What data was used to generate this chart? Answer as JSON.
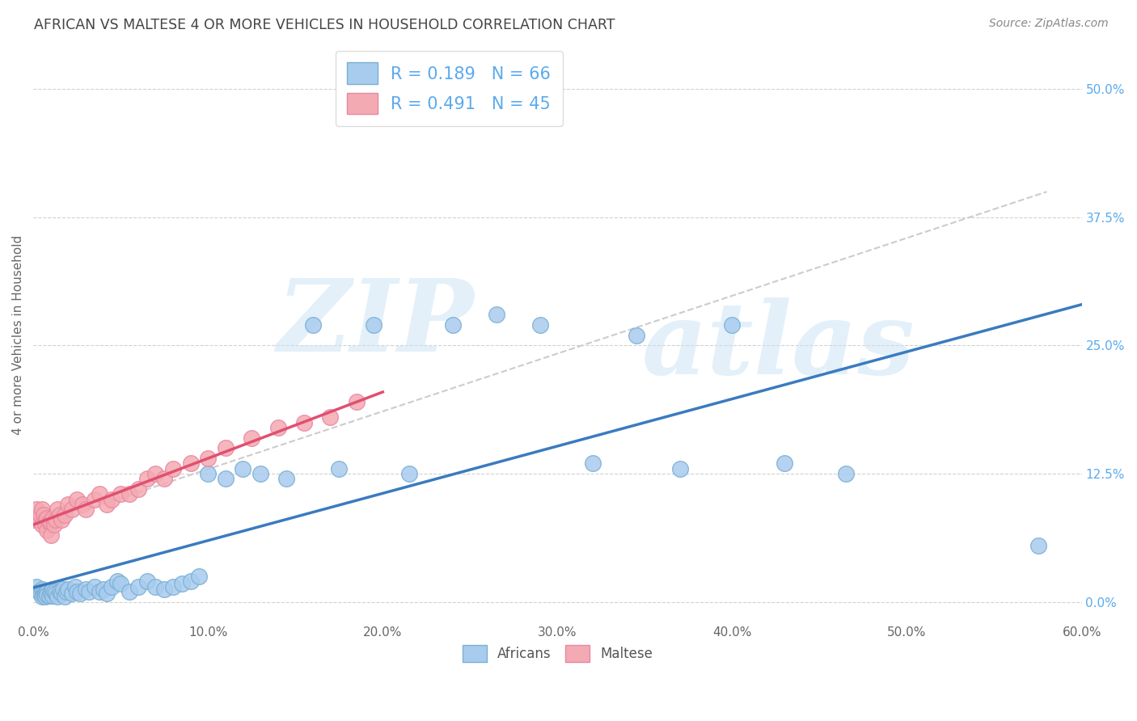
{
  "title": "AFRICAN VS MALTESE 4 OR MORE VEHICLES IN HOUSEHOLD CORRELATION CHART",
  "source": "Source: ZipAtlas.com",
  "ylabel": "4 or more Vehicles in Household",
  "xlim": [
    0.0,
    0.6
  ],
  "ylim": [
    -0.02,
    0.54
  ],
  "xtick_labels": [
    "0.0%",
    "10.0%",
    "20.0%",
    "30.0%",
    "40.0%",
    "50.0%",
    "60.0%"
  ],
  "xtick_vals": [
    0.0,
    0.1,
    0.2,
    0.3,
    0.4,
    0.5,
    0.6
  ],
  "ytick_labels_right": [
    "50.0%",
    "37.5%",
    "25.0%",
    "12.5%",
    "0.0%"
  ],
  "ytick_vals_right": [
    0.5,
    0.375,
    0.25,
    0.125,
    0.0
  ],
  "african_R": 0.189,
  "african_N": 66,
  "maltese_R": 0.491,
  "maltese_N": 45,
  "background_color": "#ffffff",
  "grid_color": "#cccccc",
  "title_color": "#444444",
  "blue_scatter": "#a8ccee",
  "blue_edge": "#7aafd4",
  "pink_scatter": "#f4aab2",
  "pink_edge": "#e888a0",
  "blue_line": "#3a7bbf",
  "pink_line": "#e05070",
  "dash_line": "#cccccc",
  "right_axis_color": "#5aaaee",
  "africans_x": [
    0.002,
    0.003,
    0.004,
    0.005,
    0.005,
    0.006,
    0.006,
    0.007,
    0.007,
    0.008,
    0.008,
    0.009,
    0.01,
    0.01,
    0.011,
    0.011,
    0.012,
    0.013,
    0.014,
    0.015,
    0.016,
    0.017,
    0.018,
    0.019,
    0.02,
    0.022,
    0.024,
    0.025,
    0.027,
    0.03,
    0.032,
    0.035,
    0.038,
    0.04,
    0.042,
    0.045,
    0.048,
    0.05,
    0.055,
    0.06,
    0.065,
    0.07,
    0.075,
    0.08,
    0.085,
    0.09,
    0.095,
    0.1,
    0.11,
    0.12,
    0.13,
    0.145,
    0.16,
    0.175,
    0.195,
    0.215,
    0.24,
    0.265,
    0.29,
    0.32,
    0.345,
    0.37,
    0.4,
    0.43,
    0.465,
    0.575
  ],
  "africans_y": [
    0.015,
    0.01,
    0.008,
    0.012,
    0.005,
    0.01,
    0.007,
    0.008,
    0.005,
    0.01,
    0.007,
    0.006,
    0.01,
    0.008,
    0.012,
    0.006,
    0.01,
    0.008,
    0.005,
    0.01,
    0.008,
    0.012,
    0.005,
    0.01,
    0.012,
    0.008,
    0.015,
    0.01,
    0.008,
    0.012,
    0.01,
    0.015,
    0.01,
    0.012,
    0.008,
    0.015,
    0.02,
    0.018,
    0.01,
    0.015,
    0.02,
    0.015,
    0.012,
    0.015,
    0.018,
    0.02,
    0.025,
    0.125,
    0.12,
    0.13,
    0.125,
    0.12,
    0.27,
    0.13,
    0.27,
    0.125,
    0.27,
    0.28,
    0.27,
    0.135,
    0.26,
    0.13,
    0.27,
    0.135,
    0.125,
    0.055
  ],
  "maltese_x": [
    0.001,
    0.002,
    0.003,
    0.004,
    0.005,
    0.005,
    0.006,
    0.007,
    0.007,
    0.008,
    0.008,
    0.009,
    0.01,
    0.01,
    0.011,
    0.012,
    0.013,
    0.014,
    0.015,
    0.016,
    0.018,
    0.02,
    0.022,
    0.025,
    0.028,
    0.03,
    0.035,
    0.038,
    0.042,
    0.045,
    0.05,
    0.055,
    0.06,
    0.065,
    0.07,
    0.075,
    0.08,
    0.09,
    0.1,
    0.11,
    0.125,
    0.14,
    0.155,
    0.17,
    0.185
  ],
  "maltese_y": [
    0.08,
    0.09,
    0.08,
    0.085,
    0.09,
    0.075,
    0.085,
    0.08,
    0.075,
    0.082,
    0.07,
    0.078,
    0.078,
    0.065,
    0.082,
    0.075,
    0.08,
    0.09,
    0.085,
    0.08,
    0.085,
    0.095,
    0.09,
    0.1,
    0.095,
    0.09,
    0.1,
    0.105,
    0.095,
    0.1,
    0.105,
    0.105,
    0.11,
    0.12,
    0.125,
    0.12,
    0.13,
    0.135,
    0.14,
    0.15,
    0.16,
    0.17,
    0.175,
    0.18,
    0.195
  ],
  "watermark_zip": "ZIP",
  "watermark_atlas": "atlas"
}
